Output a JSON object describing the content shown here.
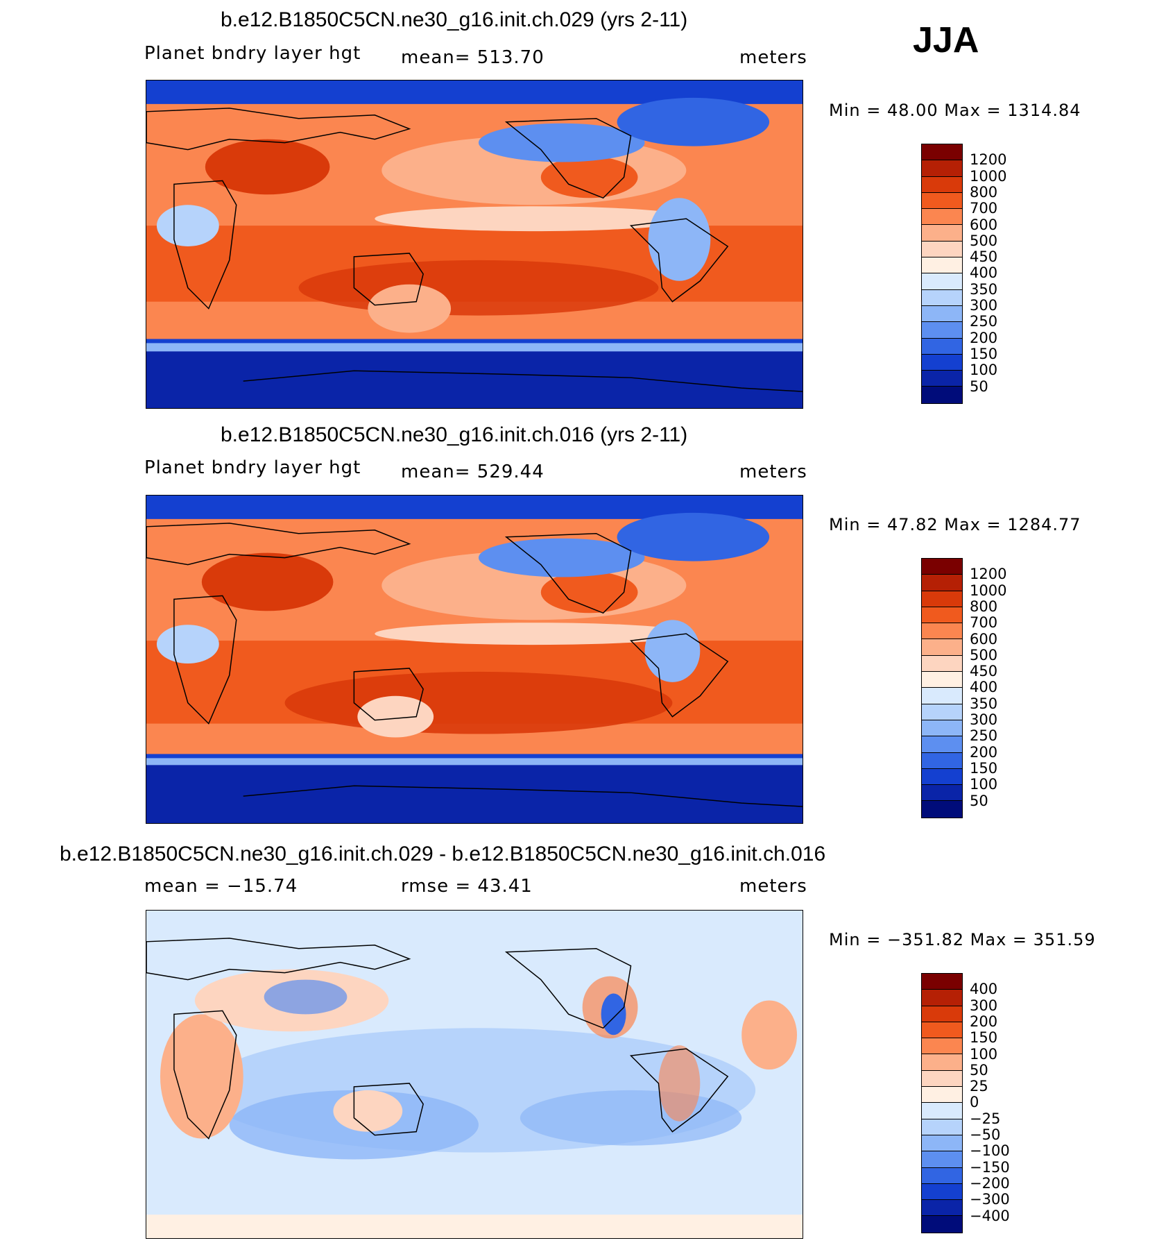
{
  "season": "JJA",
  "panels": [
    {
      "title": "b.e12.B1850C5CN.ne30_g16.init.ch.029 (yrs 2-11)",
      "variable": "Planet bndry layer hgt",
      "stat": "mean= 513.70",
      "units": "meters",
      "minmax": "Min =   48.00 Max = 1314.84"
    },
    {
      "title": "b.e12.B1850C5CN.ne30_g16.init.ch.016 (yrs 2-11)",
      "variable": "Planet bndry layer hgt",
      "stat": "mean= 529.44",
      "units": "meters",
      "minmax": "Min =   47.82 Max = 1284.77"
    },
    {
      "title": "b.e12.B1850C5CN.ne30_g16.init.ch.029 - b.e12.B1850C5CN.ne30_g16.init.ch.016",
      "variable": "mean = −15.74",
      "stat": "rmse =   43.41",
      "units": "meters",
      "minmax": "Min = −351.82 Max = 351.59"
    }
  ],
  "colorbars": {
    "abs": {
      "labels": [
        "1200",
        "1000",
        "800",
        "700",
        "600",
        "500",
        "450",
        "400",
        "350",
        "300",
        "250",
        "200",
        "150",
        "100",
        "50"
      ],
      "colors": [
        "#7a0000",
        "#b52005",
        "#d93a0a",
        "#f05a1e",
        "#fb8650",
        "#fcb08a",
        "#fdd5c0",
        "#fff0e3",
        "#d9eafd",
        "#b6d3fb",
        "#8db6f7",
        "#5d8ff0",
        "#3165e3",
        "#1440d0",
        "#0a24a8",
        "#000c7a"
      ]
    },
    "diff": {
      "labels": [
        "400",
        "300",
        "200",
        "150",
        "100",
        "50",
        "25",
        "0",
        "−25",
        "−50",
        "−100",
        "−150",
        "−200",
        "−300",
        "−400"
      ],
      "colors": [
        "#7a0000",
        "#b52005",
        "#d93a0a",
        "#f05a1e",
        "#fb8650",
        "#fcb08a",
        "#fdd5c0",
        "#fff0e3",
        "#d9eafd",
        "#b6d3fb",
        "#8db6f7",
        "#5d8ff0",
        "#3165e3",
        "#1440d0",
        "#0a24a8",
        "#000c7a"
      ]
    }
  }
}
